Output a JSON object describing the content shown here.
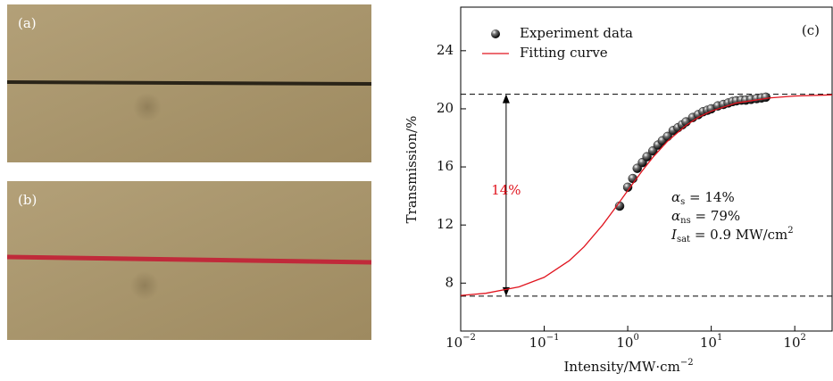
{
  "panels": {
    "a": {
      "label": "(a)"
    },
    "b": {
      "label": "(b)"
    }
  },
  "chart_data": {
    "type": "scatter",
    "panel_label": "(c)",
    "xlabel": "Intensity/MW·cm",
    "xlabel_sup": "−2",
    "ylabel": "Transmission/%",
    "xscale": "log",
    "xlim": [
      0.01,
      280
    ],
    "ylim": [
      4.7,
      27
    ],
    "xticks": [
      {
        "value": 0.01,
        "label": "10",
        "exp": "−2"
      },
      {
        "value": 0.1,
        "label": "10",
        "exp": "−1"
      },
      {
        "value": 1,
        "label": "10",
        "exp": "0"
      },
      {
        "value": 10,
        "label": "10",
        "exp": "1"
      },
      {
        "value": 100,
        "label": "10",
        "exp": "2"
      }
    ],
    "yticks": [
      8,
      12,
      16,
      20,
      24
    ],
    "legend": "upper left",
    "series": [
      {
        "name": "Experiment data",
        "kind": "scatter",
        "color": "#222222",
        "x": [
          0.8,
          1.0,
          1.15,
          1.3,
          1.5,
          1.7,
          2.0,
          2.3,
          2.6,
          3.0,
          3.5,
          4,
          4.5,
          5,
          6,
          7,
          8,
          9,
          10,
          12,
          14,
          16,
          18,
          20,
          23,
          26,
          30,
          35,
          40,
          45
        ],
        "values": [
          13.3,
          14.6,
          15.2,
          15.9,
          16.3,
          16.7,
          17.1,
          17.5,
          17.8,
          18.1,
          18.5,
          18.7,
          18.9,
          19.1,
          19.4,
          19.6,
          19.8,
          19.9,
          20.0,
          20.2,
          20.3,
          20.4,
          20.5,
          20.55,
          20.6,
          20.6,
          20.65,
          20.7,
          20.75,
          20.8
        ]
      },
      {
        "name": "Fitting curve",
        "kind": "line",
        "color": "#e0141e",
        "x": [
          0.01,
          0.02,
          0.05,
          0.1,
          0.2,
          0.3,
          0.5,
          0.7,
          1,
          1.5,
          2,
          3,
          5,
          7,
          10,
          20,
          50,
          100,
          280
        ],
        "values": [
          7.15,
          7.3,
          7.74,
          8.4,
          9.55,
          10.5,
          12.0,
          13.13,
          14.37,
          15.75,
          16.66,
          17.77,
          18.86,
          19.41,
          19.84,
          20.4,
          20.75,
          20.88,
          20.96
        ]
      }
    ],
    "ref_lines": [
      7.1,
      21
    ],
    "span_annotation": {
      "x": 0.035,
      "from": 7.1,
      "to": 21,
      "label": "14%",
      "color": "#e0141e"
    },
    "annotations": [
      {
        "main": "α",
        "sub": "s",
        "rest": " = 14%"
      },
      {
        "main": "α",
        "sub": "ns",
        "rest": " = 79%"
      },
      {
        "main": "I",
        "sub": "sat",
        "rest": " = 0.9 MW/cm",
        "sup": "2"
      }
    ]
  }
}
